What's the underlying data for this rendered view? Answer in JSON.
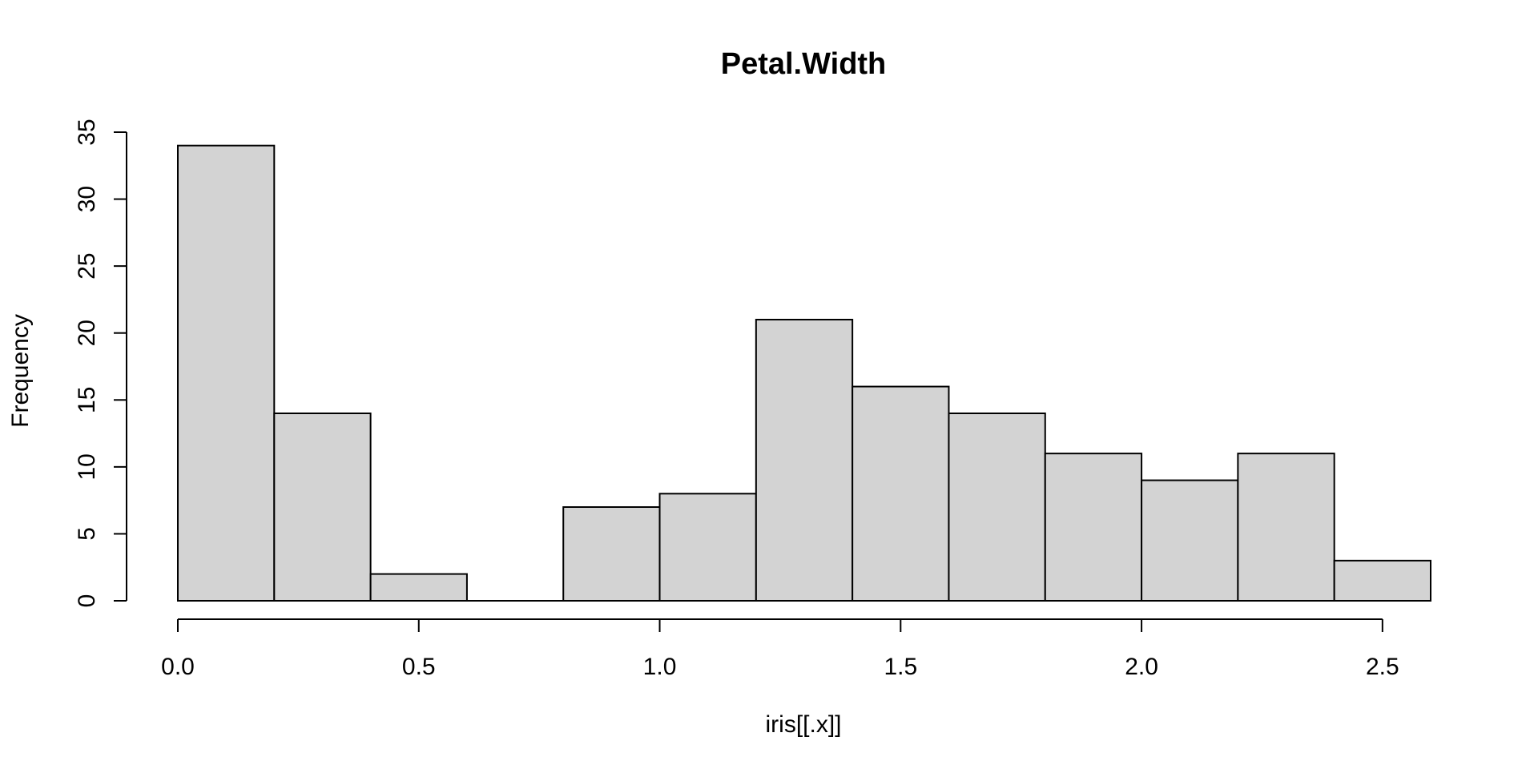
{
  "chart_data": {
    "type": "bar",
    "subtype": "histogram",
    "title": "Petal.Width",
    "xlabel": "iris[[.x]]",
    "ylabel": "Frequency",
    "bins": [
      {
        "start": 0.0,
        "end": 0.2,
        "count": 34
      },
      {
        "start": 0.2,
        "end": 0.4,
        "count": 14
      },
      {
        "start": 0.4,
        "end": 0.6,
        "count": 2
      },
      {
        "start": 0.6,
        "end": 0.8,
        "count": 0
      },
      {
        "start": 0.8,
        "end": 1.0,
        "count": 7
      },
      {
        "start": 1.0,
        "end": 1.2,
        "count": 8
      },
      {
        "start": 1.2,
        "end": 1.4,
        "count": 21
      },
      {
        "start": 1.4,
        "end": 1.6,
        "count": 16
      },
      {
        "start": 1.6,
        "end": 1.8,
        "count": 14
      },
      {
        "start": 1.8,
        "end": 2.0,
        "count": 11
      },
      {
        "start": 2.0,
        "end": 2.2,
        "count": 9
      },
      {
        "start": 2.2,
        "end": 2.4,
        "count": 11
      },
      {
        "start": 2.4,
        "end": 2.6,
        "count": 3
      }
    ],
    "xlim": [
      0.0,
      2.6
    ],
    "ylim": [
      0,
      35
    ],
    "x_ticks": [
      0.0,
      0.5,
      1.0,
      1.5,
      2.0,
      2.5
    ],
    "x_tick_labels": [
      "0.0",
      "0.5",
      "1.0",
      "1.5",
      "2.0",
      "2.5"
    ],
    "y_ticks": [
      0,
      5,
      10,
      15,
      20,
      25,
      30,
      35
    ],
    "y_tick_labels": [
      "0",
      "5",
      "10",
      "15",
      "20",
      "25",
      "30",
      "35"
    ],
    "grid": false,
    "bar_fill": "#d3d3d3",
    "bar_stroke": "#000000"
  }
}
